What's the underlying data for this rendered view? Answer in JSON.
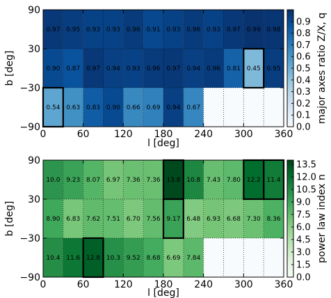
{
  "chart_data": [
    {
      "type": "heatmap",
      "xlabel": "l [deg]",
      "ylabel": "b [deg]",
      "x_ticks": [
        "0",
        "60",
        "120",
        "180",
        "240",
        "300",
        "360"
      ],
      "y_ticks": [
        "−90",
        "−30",
        "30",
        "90"
      ],
      "xlim": [
        0,
        360
      ],
      "ylim": [
        -90,
        90
      ],
      "x_bin_width": 30,
      "y_bin_edges": [
        -90,
        -30,
        30,
        90
      ],
      "colormap": "Blues",
      "colorbar": {
        "label": "major axes ratio Z/X, q",
        "ticks": [
          "0.0",
          "0.1",
          "0.2",
          "0.3",
          "0.4",
          "0.5",
          "0.6",
          "0.7",
          "0.8",
          "0.9"
        ],
        "range": [
          0,
          1
        ]
      },
      "rows": [
        {
          "b_range": [
            30,
            90
          ],
          "values": [
            0.97,
            0.95,
            0.93,
            0.93,
            0.96,
            0.91,
            0.93,
            0.96,
            0.93,
            0.97,
            0.99,
            0.98
          ],
          "labels": [
            "0.97",
            "0.95",
            "0.93",
            "0.93",
            "0.96",
            "0.91",
            "0.93",
            "0.96",
            "0.93",
            "0.97",
            "0.99",
            "0.98"
          ]
        },
        {
          "b_range": [
            -30,
            30
          ],
          "values": [
            0.9,
            0.87,
            0.97,
            0.94,
            0.93,
            0.96,
            0.97,
            0.94,
            0.96,
            0.81,
            0.45,
            0.95
          ],
          "labels": [
            "0.90",
            "0.87",
            "0.97",
            "0.94",
            "0.93",
            "0.96",
            "0.97",
            "0.94",
            "0.96",
            "0.81",
            "0.45",
            "0.95"
          ]
        },
        {
          "b_range": [
            -90,
            -30
          ],
          "values": [
            0.54,
            0.63,
            0.83,
            0.9,
            0.66,
            0.69,
            0.94,
            0.67,
            null,
            null,
            null,
            null
          ],
          "labels": [
            "0.54",
            "0.63",
            "0.83",
            "0.90",
            "0.66",
            "0.69",
            "0.94",
            "0.67",
            "",
            "",
            "",
            ""
          ]
        }
      ],
      "highlighted_cells": [
        {
          "row": 2,
          "col": 0
        },
        {
          "row": 1,
          "col": 10
        }
      ]
    },
    {
      "type": "heatmap",
      "xlabel": "l [deg]",
      "ylabel": "b [deg]",
      "x_ticks": [
        "0",
        "60",
        "120",
        "180",
        "240",
        "300",
        "360"
      ],
      "y_ticks": [
        "−90",
        "−30",
        "30",
        "90"
      ],
      "xlim": [
        0,
        360
      ],
      "ylim": [
        -90,
        90
      ],
      "x_bin_width": 30,
      "y_bin_edges": [
        -90,
        -30,
        30,
        90
      ],
      "colormap": "Greens",
      "colorbar": {
        "label": "power law index n",
        "ticks": [
          "0.0",
          "1.5",
          "3.0",
          "4.5",
          "6.0",
          "7.5",
          "9.0",
          "10.5",
          "12.0",
          "13.5"
        ],
        "range": [
          0,
          14
        ]
      },
      "rows": [
        {
          "b_range": [
            30,
            90
          ],
          "values": [
            10.0,
            9.23,
            8.07,
            6.97,
            7.36,
            7.36,
            13.8,
            10.8,
            7.43,
            7.8,
            12.2,
            11.4
          ],
          "labels": [
            "10.0",
            "9.23",
            "8.07",
            "6.97",
            "7.36",
            "7.36",
            "13.8",
            "10.8",
            "7.43",
            "7.80",
            "12.2",
            "11.4"
          ]
        },
        {
          "b_range": [
            -30,
            30
          ],
          "values": [
            8.9,
            6.83,
            7.62,
            7.51,
            6.7,
            7.56,
            9.17,
            6.48,
            6.93,
            6.68,
            7.3,
            8.36
          ],
          "labels": [
            "8.90",
            "6.83",
            "7.62",
            "7.51",
            "6.70",
            "7.56",
            "9.17",
            "6.48",
            "6.93",
            "6.68",
            "7.30",
            "8.36"
          ]
        },
        {
          "b_range": [
            -90,
            -30
          ],
          "values": [
            10.4,
            11.6,
            12.8,
            10.3,
            9.52,
            8.68,
            6.69,
            7.84,
            null,
            null,
            null,
            null
          ],
          "labels": [
            "10.4",
            "11.6",
            "12.8",
            "10.3",
            "9.52",
            "8.68",
            "6.69",
            "7.84",
            "",
            "",
            "",
            ""
          ]
        }
      ],
      "highlighted_cells": [
        {
          "row": 2,
          "col": 2
        },
        {
          "row": 0,
          "col": 6
        },
        {
          "row": 1,
          "col": 6
        },
        {
          "row": 0,
          "col": 10
        },
        {
          "row": 0,
          "col": 11
        }
      ]
    }
  ]
}
